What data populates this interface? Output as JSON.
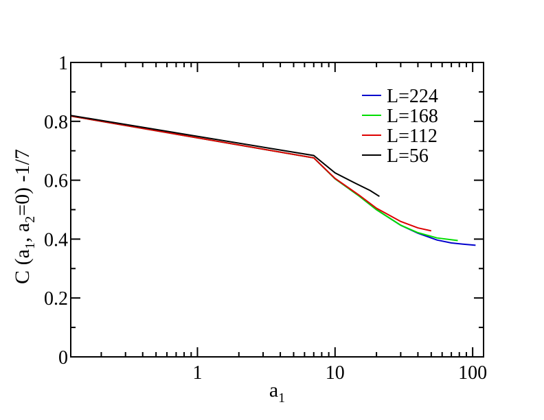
{
  "chart_data": {
    "type": "line",
    "title": "",
    "xlabel": "a",
    "xlabel_sub": "1",
    "ylabel_parts": [
      "C (a",
      "1",
      ", a",
      "2",
      "=0) -1/7"
    ],
    "xscale": "log",
    "xlim": [
      0.12,
      120
    ],
    "ylim": [
      0,
      1
    ],
    "xticks": [
      1,
      10,
      100
    ],
    "xtick_labels": [
      "1",
      "10",
      "100"
    ],
    "yticks": [
      0,
      0.2,
      0.4,
      0.6,
      0.8,
      1
    ],
    "ytick_labels": [
      "0",
      "0.2",
      "0.4",
      "0.6",
      "0.8",
      "1"
    ],
    "grid": false,
    "legend_position": "top-right",
    "series": [
      {
        "name": "L=224",
        "color": "#0000cc",
        "x": [
          0.12,
          7,
          10,
          15,
          20,
          30,
          40,
          55,
          70,
          85,
          105
        ],
        "y": [
          0.818,
          0.676,
          0.605,
          0.546,
          0.5,
          0.447,
          0.42,
          0.397,
          0.387,
          0.383,
          0.379
        ]
      },
      {
        "name": "L=168",
        "color": "#00dd00",
        "x": [
          0.12,
          7,
          10,
          15,
          20,
          30,
          40,
          55,
          78
        ],
        "y": [
          0.818,
          0.676,
          0.605,
          0.546,
          0.5,
          0.447,
          0.422,
          0.404,
          0.395
        ]
      },
      {
        "name": "L=112",
        "color": "#dd0000",
        "x": [
          0.12,
          7,
          10,
          15,
          20,
          30,
          40,
          50
        ],
        "y": [
          0.818,
          0.676,
          0.606,
          0.549,
          0.505,
          0.46,
          0.438,
          0.428
        ]
      },
      {
        "name": "L=56",
        "color": "#000000",
        "x": [
          0.12,
          7,
          10,
          14,
          18,
          21
        ],
        "y": [
          0.82,
          0.684,
          0.625,
          0.59,
          0.565,
          0.545
        ]
      }
    ]
  }
}
